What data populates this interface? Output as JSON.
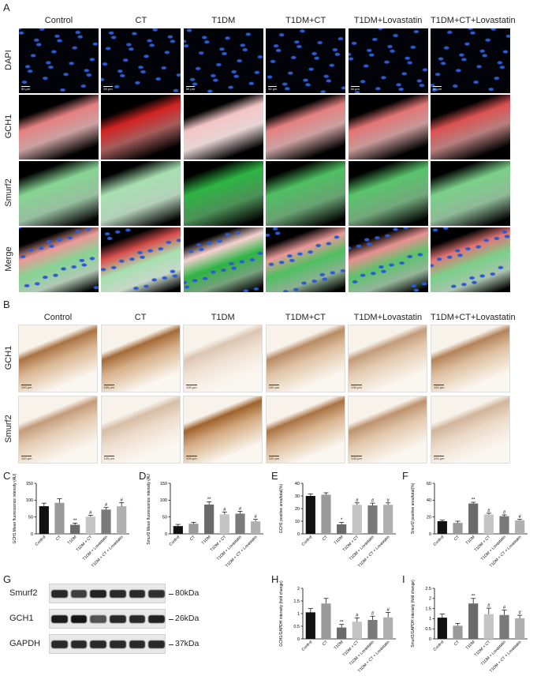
{
  "panels": {
    "A": "A",
    "B": "B",
    "C": "C",
    "D": "D",
    "E": "E",
    "F": "F",
    "G": "G",
    "H": "H",
    "I": "I"
  },
  "groups": [
    "Control",
    "CT",
    "T1DM",
    "T1DM+CT",
    "T1DM+Lovastatin",
    "T1DM+CT+Lovastatin"
  ],
  "panelA": {
    "rows": [
      "DAPI",
      "GCH1",
      "Smurf2",
      "Merge"
    ],
    "scale_bar": "50 μm"
  },
  "panelB": {
    "rows": [
      "GCH1",
      "Smurf2"
    ],
    "scale_bar": "100 μm"
  },
  "bar_categories": [
    "Control",
    "CT",
    "T1DM",
    "T1DM + CT",
    "T1DM + Lovastatin",
    "T1DM + CT + Lovastatin"
  ],
  "colors": {
    "bars": [
      "#111111",
      "#9a9a9a",
      "#6a6a6a",
      "#c4c4c4",
      "#7a7a7a",
      "#b0b0b0"
    ],
    "dapi": "#2c5ad0",
    "gch1": "#d01818",
    "smurf2": "#22b03a",
    "ihc_brown": "#9a5a22",
    "ihc_bg": "#f5efe6"
  },
  "chart_data": [
    {
      "id": "C",
      "type": "bar",
      "ylabel": "GCH1 Mean fluorescence intensity (AU)",
      "ylim": [
        0,
        150
      ],
      "yticks": [
        0,
        50,
        100,
        150
      ],
      "values": [
        82,
        92,
        27,
        51,
        72,
        82
      ],
      "errors": [
        9,
        12,
        5,
        4,
        6,
        11
      ],
      "marks": [
        "",
        "",
        "**",
        "#",
        "#",
        "#"
      ]
    },
    {
      "id": "D",
      "type": "bar",
      "ylabel": "Smurf2 Mean fluorescence intensity (AU)",
      "ylim": [
        0,
        150
      ],
      "yticks": [
        0,
        50,
        100,
        150
      ],
      "values": [
        23,
        30,
        87,
        58,
        60,
        37
      ],
      "errors": [
        5,
        4,
        8,
        7,
        7,
        6
      ],
      "marks": [
        "",
        "",
        "**",
        "#",
        "#",
        "#"
      ]
    },
    {
      "id": "E",
      "type": "bar",
      "ylabel": "GCH1 positive area/total(%)",
      "ylim": [
        0,
        40
      ],
      "yticks": [
        0,
        10,
        20,
        30,
        40
      ],
      "values": [
        30,
        31,
        7.5,
        23,
        22.5,
        23
      ],
      "errors": [
        1.5,
        1.5,
        1.5,
        1.5,
        1.8,
        1.5
      ],
      "marks": [
        "",
        "",
        "*",
        "#",
        "#",
        "#"
      ]
    },
    {
      "id": "F",
      "type": "bar",
      "ylabel": "Smurf2 positive area/total(%)",
      "ylim": [
        0,
        60
      ],
      "yticks": [
        0,
        20,
        40,
        60
      ],
      "values": [
        15,
        13,
        36,
        23,
        21,
        16
      ],
      "errors": [
        1.2,
        2,
        1.5,
        1.5,
        1.5,
        1.2
      ],
      "marks": [
        "",
        "",
        "**",
        "#",
        "#",
        "#"
      ]
    },
    {
      "id": "H",
      "type": "bar",
      "ylabel": "GCH1/GAPDH intensity (fold change)",
      "ylim": [
        0,
        2.0
      ],
      "yticks": [
        0.0,
        0.5,
        1.0,
        1.5,
        2.0
      ],
      "values": [
        1.05,
        1.4,
        0.45,
        0.68,
        0.75,
        0.85
      ],
      "errors": [
        0.15,
        0.2,
        0.12,
        0.15,
        0.15,
        0.2
      ],
      "marks": [
        "",
        "",
        "**",
        "#",
        "#",
        "#"
      ]
    },
    {
      "id": "I",
      "type": "bar",
      "ylabel": "Smurf2/GAPDH intensity (fold change)",
      "ylim": [
        0,
        2.5
      ],
      "yticks": [
        0.0,
        0.5,
        1.0,
        1.5,
        2.0,
        2.5
      ],
      "values": [
        1.05,
        0.65,
        1.75,
        1.22,
        1.18,
        1.02
      ],
      "errors": [
        0.18,
        0.12,
        0.25,
        0.3,
        0.25,
        0.15
      ],
      "marks": [
        "",
        "",
        "**",
        "#",
        "#",
        "#"
      ]
    }
  ],
  "western": {
    "proteins": [
      {
        "name": "Smurf2",
        "size": "80kDa",
        "intensities": [
          0.85,
          0.7,
          0.9,
          0.85,
          0.85,
          0.8
        ]
      },
      {
        "name": "GCH1",
        "size": "26kDa",
        "intensities": [
          0.95,
          1.0,
          0.55,
          0.85,
          0.85,
          0.9
        ]
      },
      {
        "name": "GAPDH",
        "size": "37kDa",
        "intensities": [
          0.85,
          0.85,
          0.85,
          0.85,
          0.85,
          0.85
        ]
      }
    ]
  }
}
